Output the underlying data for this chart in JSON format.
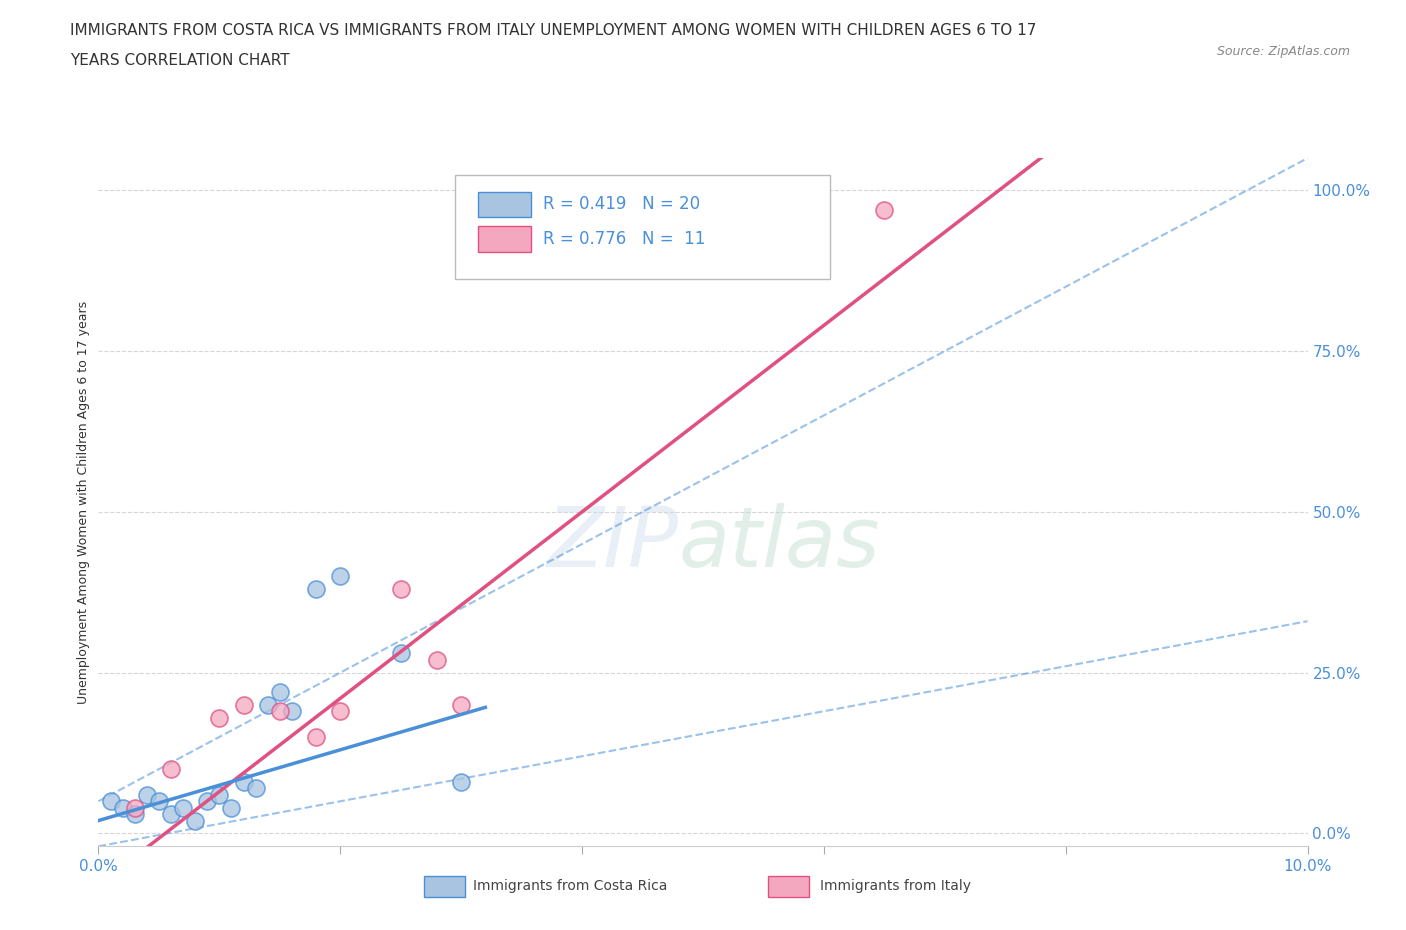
{
  "title_line1": "IMMIGRANTS FROM COSTA RICA VS IMMIGRANTS FROM ITALY UNEMPLOYMENT AMONG WOMEN WITH CHILDREN AGES 6 TO 17",
  "title_line2": "YEARS CORRELATION CHART",
  "source": "Source: ZipAtlas.com",
  "ylabel": "Unemployment Among Women with Children Ages 6 to 17 years",
  "legend_label1": "Immigrants from Costa Rica",
  "legend_label2": "Immigrants from Italy",
  "R1": 0.419,
  "N1": 20,
  "R2": 0.776,
  "N2": 11,
  "color_cr": "#a8c4e0",
  "color_italy": "#f4a8c0",
  "color_line_cr": "#4a90d9",
  "color_line_italy": "#e05080",
  "color_text_blue": "#4a90d9",
  "cr_x": [
    0.001,
    0.002,
    0.003,
    0.004,
    0.005,
    0.006,
    0.007,
    0.008,
    0.009,
    0.01,
    0.011,
    0.012,
    0.013,
    0.014,
    0.015,
    0.016,
    0.018,
    0.02,
    0.025,
    0.03
  ],
  "cr_y": [
    0.05,
    0.04,
    0.03,
    0.06,
    0.05,
    0.03,
    0.04,
    0.02,
    0.05,
    0.06,
    0.04,
    0.08,
    0.07,
    0.2,
    0.22,
    0.19,
    0.38,
    0.4,
    0.28,
    0.08
  ],
  "italy_x": [
    0.003,
    0.006,
    0.01,
    0.012,
    0.015,
    0.018,
    0.02,
    0.025,
    0.028,
    0.03,
    0.065
  ],
  "italy_y": [
    0.04,
    0.1,
    0.18,
    0.2,
    0.19,
    0.15,
    0.19,
    0.38,
    0.27,
    0.2,
    0.97
  ],
  "xlim": [
    0.0,
    0.1
  ],
  "ylim": [
    -0.02,
    1.05
  ],
  "yticks": [
    0.0,
    0.25,
    0.5,
    0.75,
    1.0
  ],
  "ytick_labels": [
    "0.0%",
    "25.0%",
    "50.0%",
    "75.0%",
    "100.0%"
  ],
  "xticks": [
    0.0,
    0.02,
    0.04,
    0.06,
    0.08,
    0.1
  ],
  "xtick_labels": [
    "0.0%",
    "",
    "",
    "",
    "",
    "10.0%"
  ],
  "grid_color": "#cccccc",
  "bg_color": "#ffffff",
  "title_fontsize": 11,
  "axis_label_fontsize": 9,
  "italy_reg_intercept": -0.08,
  "italy_reg_slope": 14.5,
  "cr_reg_intercept": 0.02,
  "cr_reg_slope": 5.5,
  "cr_conf_upper_slope_extra": 4.5,
  "cr_conf_lower_slope_extra": -2.0
}
